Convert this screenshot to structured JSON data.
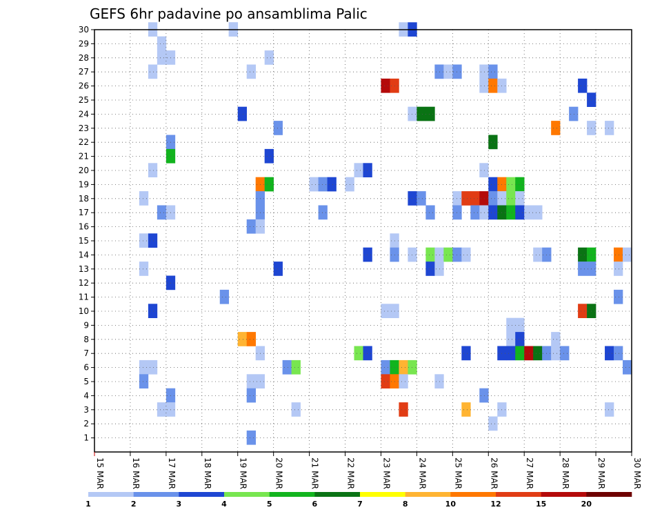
{
  "chart_data": {
    "type": "heatmap",
    "title": "GEFS 6hr padavine po ansamblima Palic",
    "x_tick_labels": [
      "15 MAR",
      "16 MAR",
      "17 MAR",
      "18 MAR",
      "19 MAR",
      "20 MAR",
      "21 MAR",
      "22 MAR",
      "23 MAR",
      "24 MAR",
      "25 MAR",
      "26 MAR",
      "27 MAR",
      "28 MAR",
      "29 MAR",
      "30 MAR"
    ],
    "x_range_days": [
      15,
      30
    ],
    "y_tick_labels": [
      "1",
      "2",
      "3",
      "4",
      "5",
      "6",
      "7",
      "8",
      "9",
      "10",
      "11",
      "12",
      "13",
      "14",
      "15",
      "16",
      "17",
      "18",
      "19",
      "20",
      "21",
      "22",
      "23",
      "24",
      "25",
      "26",
      "27",
      "28",
      "29",
      "30"
    ],
    "y_range_members": [
      0,
      30
    ],
    "grid": "dotted",
    "legend": {
      "position": "bottom",
      "thresholds": [
        "1",
        "2",
        "3",
        "4",
        "5",
        "6",
        "7",
        "8",
        "10",
        "12",
        "15",
        "20"
      ],
      "colors": [
        "#b4c8f5",
        "#6a92ea",
        "#1e46d2",
        "#78e650",
        "#12b41e",
        "#0a7314",
        "#ffff00",
        "#ffb432",
        "#ff7800",
        "#e13c14",
        "#b40a0a",
        "#6e0000"
      ]
    },
    "cell_width_days": 0.25,
    "cells": [
      [
        16.5,
        30,
        1
      ],
      [
        18.75,
        30,
        1
      ],
      [
        18.75,
        30,
        1
      ],
      [
        23.5,
        30,
        1
      ],
      [
        23.75,
        30,
        3
      ],
      [
        16.75,
        29,
        1
      ],
      [
        16.75,
        28,
        1
      ],
      [
        17,
        28,
        1
      ],
      [
        19.75,
        28,
        1
      ],
      [
        16.5,
        27,
        1
      ],
      [
        19.25,
        27,
        1
      ],
      [
        24.5,
        27,
        2
      ],
      [
        24.75,
        27,
        1
      ],
      [
        25,
        27,
        2
      ],
      [
        25.75,
        27,
        1
      ],
      [
        26,
        27,
        2
      ],
      [
        23,
        26,
        11
      ],
      [
        23.25,
        26,
        10
      ],
      [
        25.75,
        26,
        1
      ],
      [
        26,
        26,
        9
      ],
      [
        26.25,
        26,
        1
      ],
      [
        28.5,
        26,
        3
      ],
      [
        28.75,
        25,
        3
      ],
      [
        19,
        24,
        3
      ],
      [
        23.75,
        24,
        1
      ],
      [
        24,
        24,
        6
      ],
      [
        24.25,
        24,
        6
      ],
      [
        28.25,
        24,
        2
      ],
      [
        20,
        23,
        2
      ],
      [
        27.75,
        23,
        9
      ],
      [
        28.75,
        23,
        1
      ],
      [
        29.25,
        23,
        1
      ],
      [
        17,
        22,
        2
      ],
      [
        26,
        22,
        6
      ],
      [
        17,
        21,
        5
      ],
      [
        19.75,
        21,
        3
      ],
      [
        16.5,
        20,
        1
      ],
      [
        22.25,
        20,
        1
      ],
      [
        22.5,
        20,
        3
      ],
      [
        25.75,
        20,
        1
      ],
      [
        19.5,
        19,
        9
      ],
      [
        19.75,
        19,
        5
      ],
      [
        21,
        19,
        1
      ],
      [
        21.25,
        19,
        2
      ],
      [
        21.5,
        19,
        3
      ],
      [
        22,
        19,
        1
      ],
      [
        26,
        19,
        3
      ],
      [
        26.25,
        19,
        9
      ],
      [
        26.5,
        19,
        4
      ],
      [
        26.75,
        19,
        5
      ],
      [
        16.25,
        18,
        1
      ],
      [
        19.5,
        18,
        2
      ],
      [
        23.75,
        18,
        3
      ],
      [
        24,
        18,
        2
      ],
      [
        25,
        18,
        1
      ],
      [
        25.25,
        18,
        10
      ],
      [
        25.5,
        18,
        10
      ],
      [
        25.75,
        18,
        11
      ],
      [
        26,
        18,
        2
      ],
      [
        26.25,
        18,
        1
      ],
      [
        26.5,
        18,
        4
      ],
      [
        26.75,
        18,
        1
      ],
      [
        16.75,
        17,
        2
      ],
      [
        17,
        17,
        1
      ],
      [
        19.5,
        17,
        2
      ],
      [
        21.25,
        17,
        2
      ],
      [
        24.25,
        17,
        2
      ],
      [
        25,
        17,
        2
      ],
      [
        25.5,
        17,
        2
      ],
      [
        25.75,
        17,
        1
      ],
      [
        26,
        17,
        3
      ],
      [
        26.25,
        17,
        6
      ],
      [
        26.5,
        17,
        5
      ],
      [
        26.75,
        17,
        3
      ],
      [
        27,
        17,
        1
      ],
      [
        27.25,
        17,
        1
      ],
      [
        19.25,
        16,
        2
      ],
      [
        19.5,
        16,
        1
      ],
      [
        16.25,
        15,
        1
      ],
      [
        16.5,
        15,
        3
      ],
      [
        23.25,
        15,
        1
      ],
      [
        22.5,
        14,
        3
      ],
      [
        23.25,
        14,
        2
      ],
      [
        23.75,
        14,
        1
      ],
      [
        24.25,
        14,
        4
      ],
      [
        24.5,
        14,
        1
      ],
      [
        24.75,
        14,
        4
      ],
      [
        25,
        14,
        2
      ],
      [
        25.25,
        14,
        1
      ],
      [
        27.25,
        14,
        1
      ],
      [
        27.5,
        14,
        2
      ],
      [
        28.5,
        14,
        6
      ],
      [
        28.75,
        14,
        5
      ],
      [
        29.5,
        14,
        9
      ],
      [
        29.75,
        14,
        1
      ],
      [
        16.25,
        13,
        1
      ],
      [
        20,
        13,
        3
      ],
      [
        24.25,
        13,
        3
      ],
      [
        24.5,
        13,
        1
      ],
      [
        28.5,
        13,
        2
      ],
      [
        28.75,
        13,
        2
      ],
      [
        29.5,
        13,
        1
      ],
      [
        17,
        12,
        3
      ],
      [
        18.5,
        11,
        2
      ],
      [
        29.5,
        11,
        2
      ],
      [
        16.5,
        10,
        3
      ],
      [
        23,
        10,
        1
      ],
      [
        23.25,
        10,
        1
      ],
      [
        28.5,
        10,
        10
      ],
      [
        28.75,
        10,
        6
      ],
      [
        26.5,
        9,
        1
      ],
      [
        26.75,
        9,
        1
      ],
      [
        19,
        8,
        8
      ],
      [
        19.25,
        8,
        9
      ],
      [
        26.5,
        8,
        1
      ],
      [
        26.75,
        8,
        3
      ],
      [
        27.75,
        8,
        1
      ],
      [
        19.5,
        7,
        1
      ],
      [
        22.25,
        7,
        4
      ],
      [
        22.5,
        7,
        3
      ],
      [
        25.25,
        7,
        3
      ],
      [
        26.25,
        7,
        3
      ],
      [
        26.5,
        7,
        3
      ],
      [
        26.75,
        7,
        5
      ],
      [
        27,
        7,
        11
      ],
      [
        27.25,
        7,
        6
      ],
      [
        27.5,
        7,
        2
      ],
      [
        27.75,
        7,
        1
      ],
      [
        28,
        7,
        2
      ],
      [
        29.25,
        7,
        3
      ],
      [
        29.5,
        7,
        2
      ],
      [
        16.25,
        6,
        1
      ],
      [
        16.5,
        6,
        1
      ],
      [
        20.25,
        6,
        2
      ],
      [
        20.5,
        6,
        4
      ],
      [
        23,
        6,
        2
      ],
      [
        23.25,
        6,
        5
      ],
      [
        23.5,
        6,
        8
      ],
      [
        23.75,
        6,
        4
      ],
      [
        29.75,
        6,
        2
      ],
      [
        16.25,
        5,
        2
      ],
      [
        19.25,
        5,
        1
      ],
      [
        19.5,
        5,
        1
      ],
      [
        23,
        5,
        10
      ],
      [
        23.25,
        5,
        9
      ],
      [
        23.5,
        5,
        1
      ],
      [
        24.5,
        5,
        1
      ],
      [
        17,
        4,
        2
      ],
      [
        19.25,
        4,
        2
      ],
      [
        25.75,
        4,
        2
      ],
      [
        16.75,
        3,
        1
      ],
      [
        17,
        3,
        1
      ],
      [
        20.5,
        3,
        1
      ],
      [
        23.5,
        3,
        10
      ],
      [
        25.25,
        3,
        8
      ],
      [
        26.25,
        3,
        1
      ],
      [
        29.25,
        3,
        1
      ],
      [
        26,
        2,
        1
      ],
      [
        19.25,
        1,
        2
      ]
    ]
  }
}
